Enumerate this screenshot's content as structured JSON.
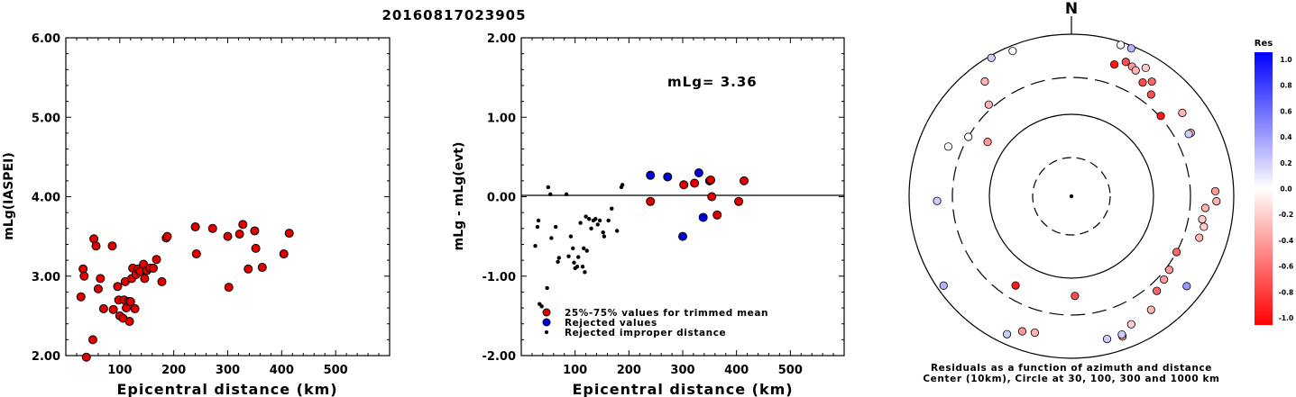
{
  "title": "20160817023905",
  "chart_data": [
    {
      "type": "scatter",
      "id": "left",
      "xlabel": "Epicentral distance (km)",
      "ylabel": "mLg(IASPEI)",
      "xlim": [
        0,
        600
      ],
      "ylim": [
        2.0,
        6.0
      ],
      "xticks": [
        100,
        200,
        300,
        400,
        500
      ],
      "yticks": [
        2.0,
        3.0,
        4.0,
        5.0,
        6.0
      ],
      "ytick_labels": [
        "2.00",
        "3.00",
        "4.00",
        "5.00",
        "6.00"
      ],
      "marker_color": "#e00000",
      "points": [
        [
          28,
          2.74
        ],
        [
          32,
          3.09
        ],
        [
          34,
          3.0
        ],
        [
          38,
          1.98
        ],
        [
          50,
          2.2
        ],
        [
          52,
          3.47
        ],
        [
          56,
          3.38
        ],
        [
          60,
          2.84
        ],
        [
          64,
          2.97
        ],
        [
          70,
          2.59
        ],
        [
          86,
          3.38
        ],
        [
          88,
          2.58
        ],
        [
          96,
          2.87
        ],
        [
          98,
          2.7
        ],
        [
          100,
          2.5
        ],
        [
          106,
          2.47
        ],
        [
          108,
          2.7
        ],
        [
          110,
          2.93
        ],
        [
          112,
          2.6
        ],
        [
          116,
          2.68
        ],
        [
          118,
          2.43
        ],
        [
          120,
          2.68
        ],
        [
          122,
          2.97
        ],
        [
          124,
          3.1
        ],
        [
          128,
          2.59
        ],
        [
          130,
          3.02
        ],
        [
          134,
          3.09
        ],
        [
          138,
          3.06
        ],
        [
          144,
          3.15
        ],
        [
          146,
          2.97
        ],
        [
          150,
          3.07
        ],
        [
          156,
          3.1
        ],
        [
          162,
          3.1
        ],
        [
          168,
          3.21
        ],
        [
          178,
          2.93
        ],
        [
          186,
          3.48
        ],
        [
          188,
          3.5
        ],
        [
          240,
          3.62
        ],
        [
          242,
          3.28
        ],
        [
          272,
          3.6
        ],
        [
          300,
          3.5
        ],
        [
          302,
          2.86
        ],
        [
          322,
          3.53
        ],
        [
          328,
          3.65
        ],
        [
          338,
          3.09
        ],
        [
          350,
          3.57
        ],
        [
          352,
          3.35
        ],
        [
          364,
          3.11
        ],
        [
          404,
          3.28
        ],
        [
          414,
          3.54
        ]
      ]
    },
    {
      "type": "scatter",
      "id": "middle",
      "xlabel": "Epicentral distance (km)",
      "ylabel": "mLg - mLg(evt)",
      "xlim": [
        0,
        600
      ],
      "ylim": [
        -2.0,
        2.0
      ],
      "xticks": [
        100,
        200,
        300,
        400,
        500
      ],
      "yticks": [
        -2.0,
        -1.0,
        0.0,
        1.0,
        2.0
      ],
      "ytick_labels": [
        "-2.00",
        "-1.00",
        "0.00",
        "1.00",
        "2.00"
      ],
      "annotation": "mLg= 3.36",
      "series": [
        {
          "name": "25%-75% values for trimmed mean",
          "color": "#e00000",
          "size": "large",
          "points": [
            [
              240,
              -0.06
            ],
            [
              302,
              0.15
            ],
            [
              322,
              0.17
            ],
            [
              352,
              0.21
            ],
            [
              354,
              0.0
            ],
            [
              364,
              -0.23
            ],
            [
              404,
              -0.06
            ],
            [
              414,
              0.2
            ]
          ]
        },
        {
          "name": "Rejected values",
          "color": "#0000dd",
          "size": "large",
          "points": [
            [
              240,
              0.27
            ],
            [
              272,
              0.25
            ],
            [
              300,
              -0.5
            ],
            [
              330,
              0.3
            ],
            [
              338,
              -0.26
            ],
            [
              350,
              0.2
            ]
          ]
        },
        {
          "name": "Rejected improper distance",
          "color": "#000000",
          "size": "small",
          "points": [
            [
              26,
              -0.62
            ],
            [
              30,
              -0.38
            ],
            [
              32,
              -0.3
            ],
            [
              34,
              -1.35
            ],
            [
              38,
              -1.38
            ],
            [
              48,
              -1.15
            ],
            [
              50,
              0.12
            ],
            [
              54,
              0.03
            ],
            [
              56,
              -0.52
            ],
            [
              64,
              -0.38
            ],
            [
              68,
              -0.82
            ],
            [
              70,
              -0.77
            ],
            [
              84,
              0.03
            ],
            [
              88,
              -0.75
            ],
            [
              92,
              -0.5
            ],
            [
              96,
              -0.65
            ],
            [
              98,
              -0.83
            ],
            [
              100,
              -0.9
            ],
            [
              104,
              -0.88
            ],
            [
              106,
              -0.76
            ],
            [
              110,
              -0.33
            ],
            [
              114,
              -0.88
            ],
            [
              116,
              -0.65
            ],
            [
              118,
              -0.95
            ],
            [
              120,
              -0.25
            ],
            [
              122,
              -0.68
            ],
            [
              126,
              -0.28
            ],
            [
              130,
              -0.4
            ],
            [
              134,
              -0.3
            ],
            [
              138,
              -0.28
            ],
            [
              142,
              -0.35
            ],
            [
              146,
              -0.3
            ],
            [
              152,
              -0.45
            ],
            [
              154,
              -0.5
            ],
            [
              162,
              -0.3
            ],
            [
              168,
              -0.15
            ],
            [
              178,
              -0.43
            ],
            [
              186,
              0.12
            ],
            [
              188,
              0.15
            ]
          ]
        }
      ]
    },
    {
      "type": "polar-scatter",
      "id": "map",
      "north_label": "N",
      "caption": [
        "Residuals as a function of azimuth and distance",
        "Center (10km), Circle at 30, 100, 300 and 1000 km"
      ],
      "rings_km": [
        30,
        100,
        300,
        1000
      ],
      "points": [
        [
          22,
          620,
          -0.7
        ],
        [
          25,
          590,
          -0.4
        ],
        [
          27,
          560,
          -0.3
        ],
        [
          30,
          680,
          -0.2
        ],
        [
          35,
          540,
          -0.6
        ],
        [
          18,
          520,
          -0.9
        ],
        [
          32,
          460,
          -0.7
        ],
        [
          38,
          400,
          -0.7
        ],
        [
          48,
          310,
          -0.9
        ],
        [
          53,
          520,
          -0.3
        ],
        [
          62,
          470,
          -0.3
        ],
        [
          95,
          460,
          -0.3
        ],
        [
          100,
          440,
          -0.2
        ],
        [
          103,
          480,
          -0.2
        ],
        [
          108,
          460,
          -0.3
        ],
        [
          88,
          600,
          -0.4
        ],
        [
          92,
          620,
          -0.3
        ],
        [
          118,
          300,
          -0.6
        ],
        [
          127,
          330,
          -0.4
        ],
        [
          132,
          350,
          -0.4
        ],
        [
          138,
          380,
          -0.6
        ],
        [
          145,
          520,
          -0.3
        ],
        [
          155,
          560,
          -0.2
        ],
        [
          160,
          700,
          -0.4
        ],
        [
          166,
          660,
          0.2
        ],
        [
          195,
          560,
          -0.3
        ],
        [
          200,
          600,
          -0.4
        ],
        [
          205,
          760,
          0.2
        ],
        [
          212,
          200,
          -0.9
        ],
        [
          178,
          170,
          -0.7
        ],
        [
          235,
          840,
          0.3
        ],
        [
          268,
          460,
          0.2
        ],
        [
          292,
          440,
          0.0
        ],
        [
          303,
          170,
          -0.4
        ],
        [
          300,
          300,
          0.0
        ],
        [
          318,
          340,
          -0.3
        ],
        [
          323,
          600,
          -0.3
        ],
        [
          330,
          940,
          0.2
        ],
        [
          338,
          860,
          0.0
        ],
        [
          22,
          930,
          0.3
        ],
        [
          18,
          920,
          0.0
        ],
        [
          62,
          440,
          0.2
        ],
        [
          128,
          640,
          0.4
        ],
        [
          160,
          660,
          0.2
        ]
      ]
    }
  ],
  "colorbar": {
    "title": "Res",
    "tick_labels": [
      "1.0",
      "0.8",
      "0.6",
      "0.4",
      "0.2",
      "0.0",
      "-0.2",
      "-0.4",
      "-0.6",
      "-0.8",
      "-1.0"
    ]
  }
}
